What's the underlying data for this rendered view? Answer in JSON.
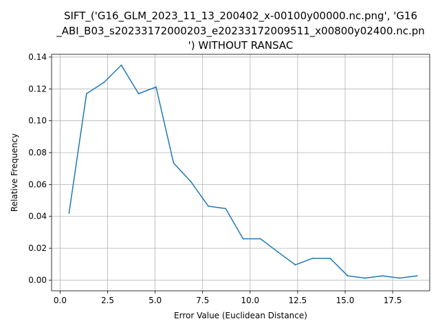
{
  "chart_data": {
    "type": "line",
    "title_lines": [
      "SIFT_('G16_GLM_2023_11_13_200402_x-00100y00000.nc.png', 'G16",
      "_ABI_B03_s20233172000203_e20233172009511_x00800y02400.nc.pn",
      "') WITHOUT RANSAC"
    ],
    "xlabel": "Error Value (Euclidean Distance)",
    "ylabel": "Relative Frequency",
    "xlim": [
      -0.45,
      19.45
    ],
    "ylim": [
      -0.0067,
      0.1417
    ],
    "x_ticks": [
      0.0,
      2.5,
      5.0,
      7.5,
      10.0,
      12.5,
      15.0,
      17.5
    ],
    "x_tick_labels": [
      "0.0",
      "2.5",
      "5.0",
      "7.5",
      "10.0",
      "12.5",
      "15.0",
      "17.5"
    ],
    "y_ticks": [
      0.0,
      0.02,
      0.04,
      0.06,
      0.08,
      0.1,
      0.12,
      0.14
    ],
    "y_tick_labels": [
      "0.00",
      "0.02",
      "0.04",
      "0.06",
      "0.08",
      "0.10",
      "0.12",
      "0.14"
    ],
    "grid": true,
    "series": [
      {
        "color": "#1f77b4",
        "x": [
          0.47,
          1.39,
          2.3,
          3.22,
          4.13,
          5.05,
          5.97,
          6.88,
          7.8,
          8.71,
          9.63,
          10.55,
          11.46,
          12.38,
          13.29,
          14.21,
          15.13,
          16.04,
          16.96,
          17.87,
          18.79
        ],
        "y": [
          0.0421,
          0.117,
          0.124,
          0.1349,
          0.117,
          0.1212,
          0.0735,
          0.0618,
          0.0464,
          0.0449,
          0.0259,
          0.0259,
          0.0177,
          0.0096,
          0.0137,
          0.0137,
          0.0027,
          0.0013,
          0.0027,
          0.0013,
          0.0027
        ]
      }
    ]
  }
}
